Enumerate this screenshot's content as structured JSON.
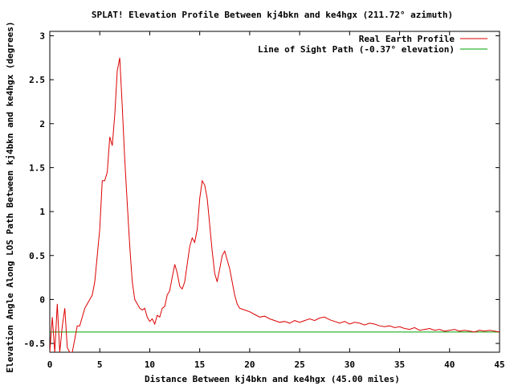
{
  "chart_data": {
    "type": "line",
    "title": "SPLAT! Elevation Profile Between kj4bkn and ke4hgx (211.72° azimuth)",
    "xlabel": "Distance Between kj4bkn and ke4hgx (45.00 miles)",
    "ylabel": "Elevation Angle Along LOS Path Between kj4bkn and ke4hgx (degrees)",
    "xlim": [
      0,
      45
    ],
    "ylim": [
      -0.6,
      3.05
    ],
    "x_ticks": [
      "0",
      "5",
      "10",
      "15",
      "20",
      "25",
      "30",
      "35",
      "40",
      "45"
    ],
    "y_ticks": [
      "-0.5",
      "0",
      "0.5",
      "1",
      "1.5",
      "2",
      "2.5",
      "3"
    ],
    "legend_position": "top-right",
    "series": [
      {
        "name": "Real Earth Profile",
        "color": "#dd0000",
        "x": [
          0,
          0.25,
          0.5,
          0.75,
          1.0,
          1.25,
          1.5,
          1.75,
          2.0,
          2.25,
          2.5,
          2.75,
          3.0,
          3.25,
          3.5,
          3.75,
          4.0,
          4.25,
          4.5,
          4.75,
          5.0,
          5.25,
          5.5,
          5.75,
          6.0,
          6.25,
          6.5,
          6.75,
          7.0,
          7.25,
          7.5,
          7.75,
          8.0,
          8.25,
          8.5,
          8.75,
          9.0,
          9.25,
          9.5,
          9.75,
          10.0,
          10.25,
          10.5,
          10.75,
          11.0,
          11.25,
          11.5,
          11.75,
          12.0,
          12.25,
          12.5,
          12.75,
          13.0,
          13.25,
          13.5,
          13.75,
          14.0,
          14.25,
          14.5,
          14.75,
          15.0,
          15.25,
          15.5,
          15.75,
          16.0,
          16.25,
          16.5,
          16.75,
          17.0,
          17.25,
          17.5,
          17.75,
          18.0,
          18.25,
          18.5,
          18.75,
          19.0,
          19.5,
          20.0,
          20.5,
          21.0,
          21.5,
          22.0,
          22.5,
          23.0,
          23.5,
          24.0,
          24.5,
          25.0,
          25.5,
          26.0,
          26.5,
          27.0,
          27.5,
          28.0,
          28.5,
          29.0,
          29.5,
          30.0,
          30.5,
          31.0,
          31.5,
          32.0,
          32.5,
          33.0,
          33.5,
          34.0,
          34.5,
          35.0,
          35.5,
          36.0,
          36.5,
          37.0,
          37.5,
          38.0,
          38.5,
          39.0,
          39.5,
          40.0,
          40.5,
          41.0,
          41.5,
          42.0,
          42.5,
          43.0,
          43.5,
          44.0,
          44.5,
          45.0
        ],
        "y": [
          -0.6,
          -0.2,
          -0.6,
          -0.05,
          -0.6,
          -0.3,
          -0.1,
          -0.55,
          -0.6,
          -0.6,
          -0.45,
          -0.3,
          -0.3,
          -0.2,
          -0.1,
          -0.05,
          0.0,
          0.05,
          0.2,
          0.5,
          0.8,
          1.35,
          1.35,
          1.45,
          1.85,
          1.75,
          2.1,
          2.6,
          2.75,
          2.2,
          1.6,
          1.1,
          0.6,
          0.2,
          0.0,
          -0.05,
          -0.1,
          -0.12,
          -0.1,
          -0.2,
          -0.25,
          -0.22,
          -0.28,
          -0.18,
          -0.2,
          -0.1,
          -0.08,
          0.05,
          0.1,
          0.25,
          0.4,
          0.3,
          0.15,
          0.12,
          0.2,
          0.4,
          0.6,
          0.7,
          0.65,
          0.8,
          1.15,
          1.35,
          1.3,
          1.15,
          0.85,
          0.55,
          0.3,
          0.2,
          0.35,
          0.5,
          0.55,
          0.45,
          0.35,
          0.2,
          0.05,
          -0.05,
          -0.1,
          -0.12,
          -0.14,
          -0.17,
          -0.2,
          -0.19,
          -0.22,
          -0.24,
          -0.26,
          -0.25,
          -0.27,
          -0.24,
          -0.26,
          -0.24,
          -0.22,
          -0.24,
          -0.21,
          -0.2,
          -0.23,
          -0.25,
          -0.27,
          -0.25,
          -0.28,
          -0.26,
          -0.27,
          -0.29,
          -0.27,
          -0.28,
          -0.3,
          -0.31,
          -0.3,
          -0.32,
          -0.31,
          -0.33,
          -0.34,
          -0.32,
          -0.35,
          -0.34,
          -0.33,
          -0.35,
          -0.34,
          -0.36,
          -0.35,
          -0.34,
          -0.36,
          -0.35,
          -0.36,
          -0.37,
          -0.35,
          -0.36,
          -0.35,
          -0.36,
          -0.37
        ]
      },
      {
        "name": "Line of Sight Path (-0.37° elevation)",
        "color": "#00a000",
        "x": [
          0,
          45
        ],
        "y": [
          -0.37,
          -0.37
        ]
      }
    ]
  }
}
